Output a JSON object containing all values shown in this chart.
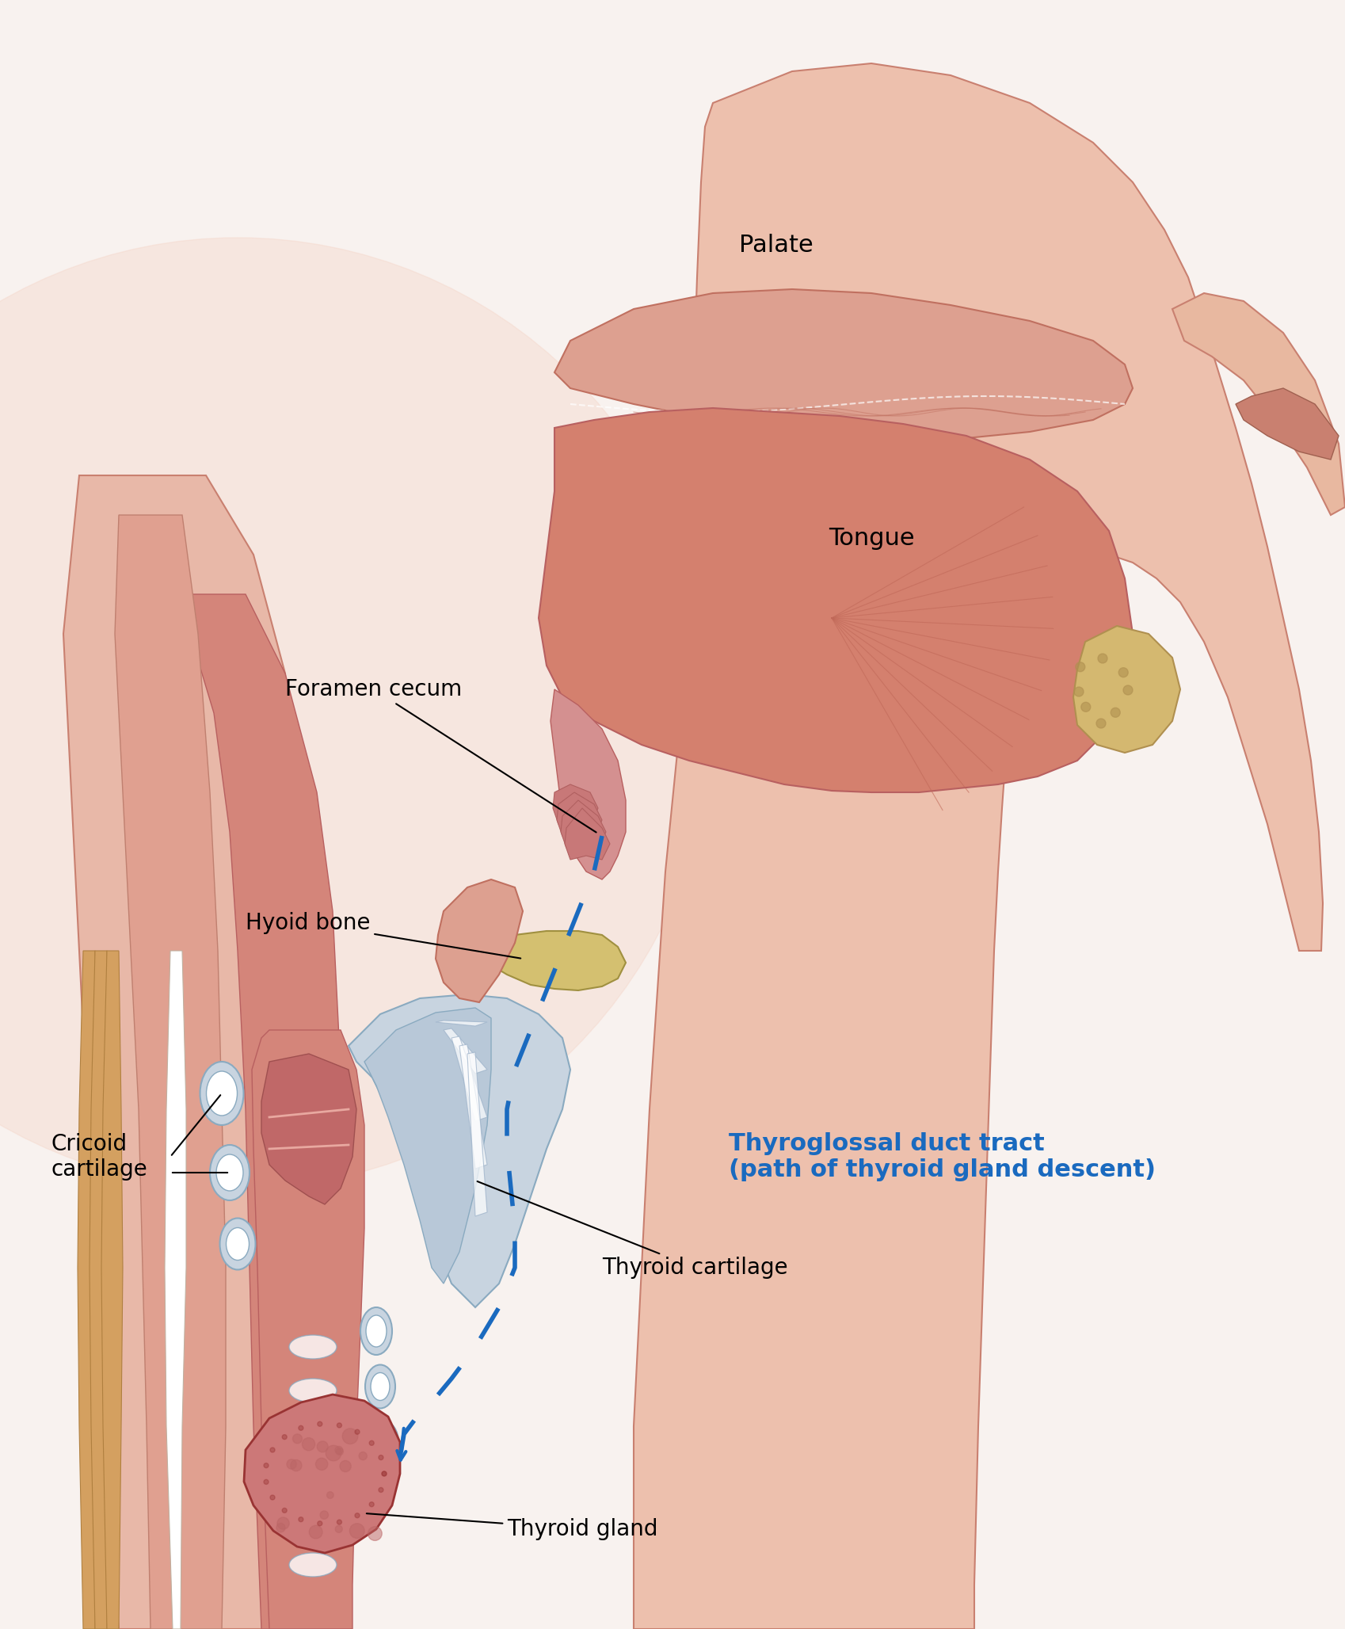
{
  "bg_color": "#f5f0ee",
  "skin_color": "#e8b8a8",
  "skin_dark": "#c98070",
  "skin_medium": "#d4957f",
  "throat_color": "#cc8877",
  "muscle_color": "#d4857a",
  "muscle_line": "#b86060",
  "cartilage_color": "#c8d8e8",
  "cartilage_outline": "#8aaacc",
  "bone_color": "#d4c080",
  "thyroid_color": "#cc7777",
  "thyroid_fill": "#e09090",
  "palate_color": "#e8b0a0",
  "tongue_color": "#d4807a",
  "duct_color": "#1a6abf",
  "arrow_color": "#1a6abf",
  "label_color": "#000000",
  "blue_label_color": "#1a6abf",
  "background_gradient_color": "#fde8e0",
  "labels": {
    "palate": "Palate",
    "tongue": "Tongue",
    "foramen_cecum": "Foramen cecum",
    "hyoid_bone": "Hyoid bone",
    "cricoid_cartilage": "Cricoid\ncartilage",
    "thyroid_cartilage": "Thyroid cartilage",
    "thyroid_gland": "Thyroid gland",
    "duct_tract": "Thyroglossal duct tract\n(path of thyroid gland descent)"
  }
}
